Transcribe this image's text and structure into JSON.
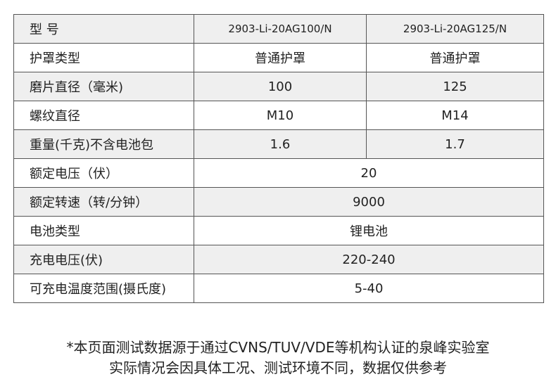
{
  "table": {
    "rows": [
      [
        "型 号",
        "2903-Li-20AG100/N",
        "2903-Li-20AG125/N"
      ],
      [
        "护罩类型",
        "普通护罩",
        "普通护罩"
      ],
      [
        "磨片直径（毫米)",
        "100",
        "125"
      ],
      [
        "螺纹直径",
        "M10",
        "M14"
      ],
      [
        "重量(千克)不含电池包",
        "1.6",
        "1.7"
      ],
      [
        "额定电压（伏）",
        "20"
      ],
      [
        "额定转速（转/分钟）",
        "9000"
      ],
      [
        "电池类型",
        "锂电池"
      ],
      [
        "充电电压(伏)",
        "220-240"
      ],
      [
        "可充电温度范围(摄氏度)",
        "5-40"
      ]
    ]
  },
  "note": [
    "*本页面测试数据源于通过CVNS/TUV/VDE等机构认证的泉峰实验室",
    "实际情况会因具体工况、测试环境不同，数据仅供参考"
  ]
}
